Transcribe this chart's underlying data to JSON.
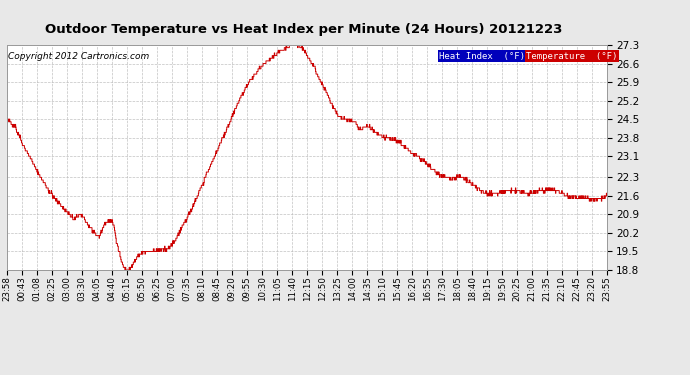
{
  "title": "Outdoor Temperature vs Heat Index per Minute (24 Hours) 20121223",
  "copyright": "Copyright 2012 Cartronics.com",
  "line_color": "#cc0000",
  "heat_index_label": "Heat Index  (°F)",
  "temperature_label": "Temperature  (°F)",
  "heat_index_bg": "#0000bb",
  "temperature_bg": "#cc0000",
  "ylim": [
    18.8,
    27.3
  ],
  "yticks": [
    18.8,
    19.5,
    20.2,
    20.9,
    21.6,
    22.3,
    23.1,
    23.8,
    24.5,
    25.2,
    25.9,
    26.6,
    27.3
  ],
  "bg_color": "#e8e8e8",
  "plot_bg": "#ffffff",
  "grid_color": "#bbbbbb",
  "xtick_labels": [
    "23:58",
    "00:43",
    "01:08",
    "02:25",
    "03:00",
    "03:30",
    "04:05",
    "04:40",
    "05:15",
    "05:50",
    "06:25",
    "07:00",
    "07:35",
    "08:10",
    "08:45",
    "09:20",
    "09:55",
    "10:30",
    "11:05",
    "11:40",
    "12:15",
    "12:50",
    "13:25",
    "14:00",
    "14:35",
    "15:10",
    "15:45",
    "16:20",
    "16:55",
    "17:30",
    "18:05",
    "18:40",
    "19:15",
    "19:50",
    "20:25",
    "21:00",
    "21:35",
    "22:10",
    "22:45",
    "23:20",
    "23:55"
  ],
  "waypoints": [
    [
      0,
      24.5
    ],
    [
      20,
      24.2
    ],
    [
      40,
      23.5
    ],
    [
      60,
      22.9
    ],
    [
      80,
      22.3
    ],
    [
      100,
      21.8
    ],
    [
      120,
      21.4
    ],
    [
      145,
      21.0
    ],
    [
      160,
      20.7
    ],
    [
      175,
      20.9
    ],
    [
      185,
      20.75
    ],
    [
      195,
      20.5
    ],
    [
      210,
      20.15
    ],
    [
      220,
      20.05
    ],
    [
      235,
      20.55
    ],
    [
      245,
      20.7
    ],
    [
      255,
      20.55
    ],
    [
      265,
      19.7
    ],
    [
      275,
      19.1
    ],
    [
      282,
      18.85
    ],
    [
      290,
      18.8
    ],
    [
      298,
      18.9
    ],
    [
      308,
      19.2
    ],
    [
      320,
      19.4
    ],
    [
      335,
      19.5
    ],
    [
      355,
      19.55
    ],
    [
      370,
      19.55
    ],
    [
      385,
      19.6
    ],
    [
      400,
      19.85
    ],
    [
      420,
      20.4
    ],
    [
      445,
      21.2
    ],
    [
      470,
      22.1
    ],
    [
      495,
      23.0
    ],
    [
      520,
      23.9
    ],
    [
      545,
      24.8
    ],
    [
      565,
      25.5
    ],
    [
      585,
      26.0
    ],
    [
      605,
      26.4
    ],
    [
      625,
      26.7
    ],
    [
      645,
      26.95
    ],
    [
      660,
      27.1
    ],
    [
      672,
      27.25
    ],
    [
      680,
      27.3
    ],
    [
      690,
      27.3
    ],
    [
      700,
      27.28
    ],
    [
      710,
      27.15
    ],
    [
      720,
      26.9
    ],
    [
      735,
      26.5
    ],
    [
      750,
      26.0
    ],
    [
      765,
      25.5
    ],
    [
      780,
      25.0
    ],
    [
      795,
      24.6
    ],
    [
      810,
      24.5
    ],
    [
      820,
      24.45
    ],
    [
      830,
      24.45
    ],
    [
      838,
      24.3
    ],
    [
      845,
      24.1
    ],
    [
      852,
      24.15
    ],
    [
      858,
      24.2
    ],
    [
      865,
      24.25
    ],
    [
      872,
      24.15
    ],
    [
      880,
      24.0
    ],
    [
      890,
      23.9
    ],
    [
      905,
      23.8
    ],
    [
      920,
      23.75
    ],
    [
      935,
      23.7
    ],
    [
      950,
      23.5
    ],
    [
      968,
      23.25
    ],
    [
      985,
      23.1
    ],
    [
      1000,
      22.9
    ],
    [
      1020,
      22.6
    ],
    [
      1040,
      22.35
    ],
    [
      1055,
      22.3
    ],
    [
      1065,
      22.25
    ],
    [
      1075,
      22.3
    ],
    [
      1082,
      22.35
    ],
    [
      1090,
      22.3
    ],
    [
      1100,
      22.2
    ],
    [
      1115,
      22.0
    ],
    [
      1130,
      21.85
    ],
    [
      1148,
      21.7
    ],
    [
      1165,
      21.65
    ],
    [
      1190,
      21.75
    ],
    [
      1210,
      21.8
    ],
    [
      1230,
      21.75
    ],
    [
      1255,
      21.7
    ],
    [
      1275,
      21.8
    ],
    [
      1300,
      21.85
    ],
    [
      1315,
      21.8
    ],
    [
      1330,
      21.7
    ],
    [
      1345,
      21.6
    ],
    [
      1365,
      21.55
    ],
    [
      1390,
      21.5
    ],
    [
      1410,
      21.45
    ],
    [
      1425,
      21.5
    ],
    [
      1439,
      21.6
    ]
  ]
}
